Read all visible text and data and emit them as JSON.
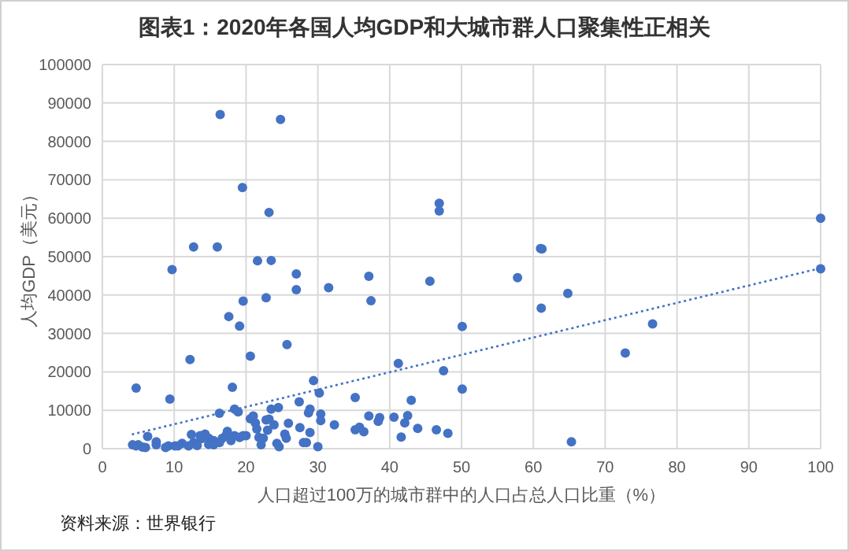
{
  "chart_data": {
    "type": "scatter",
    "title": "图表1：2020年各国人均GDP和大城市群人口聚集性正相关",
    "xlabel": "人口超过100万的城市群中的人口占总人口比重（%）",
    "ylabel": "人均GDP（美元）",
    "annotations": [
      "资料来源：世界银行"
    ],
    "xlim": [
      0,
      100
    ],
    "ylim": [
      0,
      100000
    ],
    "xticks": [
      0,
      10,
      20,
      30,
      40,
      50,
      60,
      70,
      80,
      90,
      100
    ],
    "yticks": [
      0,
      10000,
      20000,
      30000,
      40000,
      50000,
      60000,
      70000,
      80000,
      90000,
      100000
    ],
    "grid": true,
    "series": [
      {
        "type": "scatter",
        "marker": "circle",
        "color": "#4472c4",
        "x": [
          16.4,
          24.8,
          19.5,
          23.2,
          12.7,
          16,
          46.9,
          46.9,
          61.2,
          100,
          9.7,
          21.6,
          23.5,
          27,
          27,
          37.1,
          37.4,
          31.5,
          45.6,
          22.8,
          19.6,
          17.6,
          19.1,
          25.7,
          20.6,
          12.2,
          50.1,
          41.2,
          47.5,
          4.7,
          9.4,
          18.1,
          29.4,
          30.2,
          50.1,
          27.4,
          35.2,
          43,
          18.4,
          18.9,
          16.3,
          20.6,
          21,
          23.2,
          23.5,
          24.5,
          28.9,
          28.7,
          30.4,
          30.4,
          32.3,
          37.1,
          38.6,
          38.4,
          35.2,
          35.8,
          36.4,
          40.6,
          42.1,
          42.5,
          43.9,
          46.5,
          48.1,
          41.6,
          25.9,
          27.5,
          28.9,
          28.4,
          28,
          30,
          25.4,
          25.6,
          24.3,
          24.6,
          22.1,
          21.8,
          23,
          21.5,
          20,
          19.1,
          19.6,
          17.4,
          17.2,
          16.7,
          17.9,
          16.3,
          14.8,
          14.3,
          13.6,
          13.8,
          12.4,
          12.7,
          13.2,
          12,
          11.1,
          10.5,
          10.1,
          9.2,
          8.8,
          7.5,
          7.5,
          6.3,
          5.6,
          4.7,
          4.2,
          5,
          6,
          14.8,
          15.5,
          18.4,
          21.3,
          22.8,
          23.9,
          22.4,
          15.5,
          61,
          57.8,
          64.8,
          61.1,
          76.6,
          72.8,
          100,
          65.3
        ],
        "values": [
          87000,
          85700,
          68000,
          61500,
          52500,
          52500,
          63900,
          61900,
          52000,
          60000,
          46600,
          48900,
          49000,
          45500,
          41400,
          44900,
          38500,
          41900,
          43600,
          39300,
          38400,
          34400,
          31900,
          27100,
          24100,
          23200,
          31800,
          22200,
          20300,
          15800,
          12900,
          16000,
          17700,
          14500,
          15500,
          12200,
          13300,
          12600,
          10300,
          9600,
          9200,
          7800,
          8500,
          7700,
          10300,
          10700,
          10300,
          9300,
          9000,
          7300,
          6200,
          8500,
          8100,
          7100,
          4900,
          5600,
          4400,
          8200,
          6700,
          8600,
          5300,
          4900,
          4000,
          3000,
          6600,
          5500,
          4200,
          1600,
          1600,
          500,
          3800,
          2700,
          1400,
          500,
          1000,
          2900,
          4800,
          5100,
          3400,
          2900,
          3400,
          4500,
          3400,
          2700,
          2100,
          1600,
          1100,
          3800,
          3400,
          2600,
          3700,
          1600,
          800,
          700,
          1400,
          700,
          700,
          700,
          300,
          1000,
          1800,
          3200,
          400,
          700,
          1000,
          1000,
          300,
          2700,
          2100,
          3400,
          6700,
          7500,
          6200,
          2700,
          1000,
          52100,
          44500,
          40400,
          36600,
          32500,
          24900,
          46800,
          1800
        ]
      },
      {
        "type": "line",
        "line_style": "dotted",
        "marker": "none",
        "color": "#4472c4",
        "x": [
          4.1,
          100
        ],
        "values": [
          3700,
          47000
        ]
      }
    ]
  }
}
